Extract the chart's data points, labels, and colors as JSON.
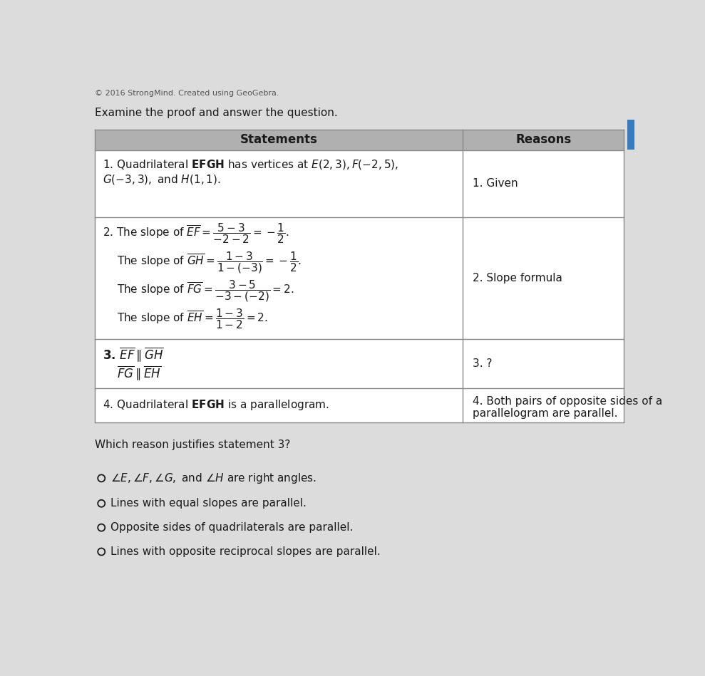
{
  "copyright_text": "© 2016 StrongMind. Created using GeoGebra.",
  "examine_text": "Examine the proof and answer the question.",
  "col1_header": "Statements",
  "col2_header": "Reasons",
  "row1_reason": "1. Given",
  "row2_reason": "2. Slope formula",
  "row3_reason": "3. ?",
  "question": "Which reason justifies statement 3?",
  "options": [
    "∠E, ∠F, ∠G, and ∠H are right angles.",
    "Lines with equal slopes are parallel.",
    "Opposite sides of quadrilaterals are parallel.",
    "Lines with opposite reciprocal slopes are parallel."
  ],
  "selected_option": -1,
  "bg_color": "#dcdcdc",
  "table_bg": "#ffffff",
  "header_bg": "#b0b0b0",
  "border_color": "#888888",
  "text_color": "#1a1a1a",
  "tab_color": "#3a7abf"
}
